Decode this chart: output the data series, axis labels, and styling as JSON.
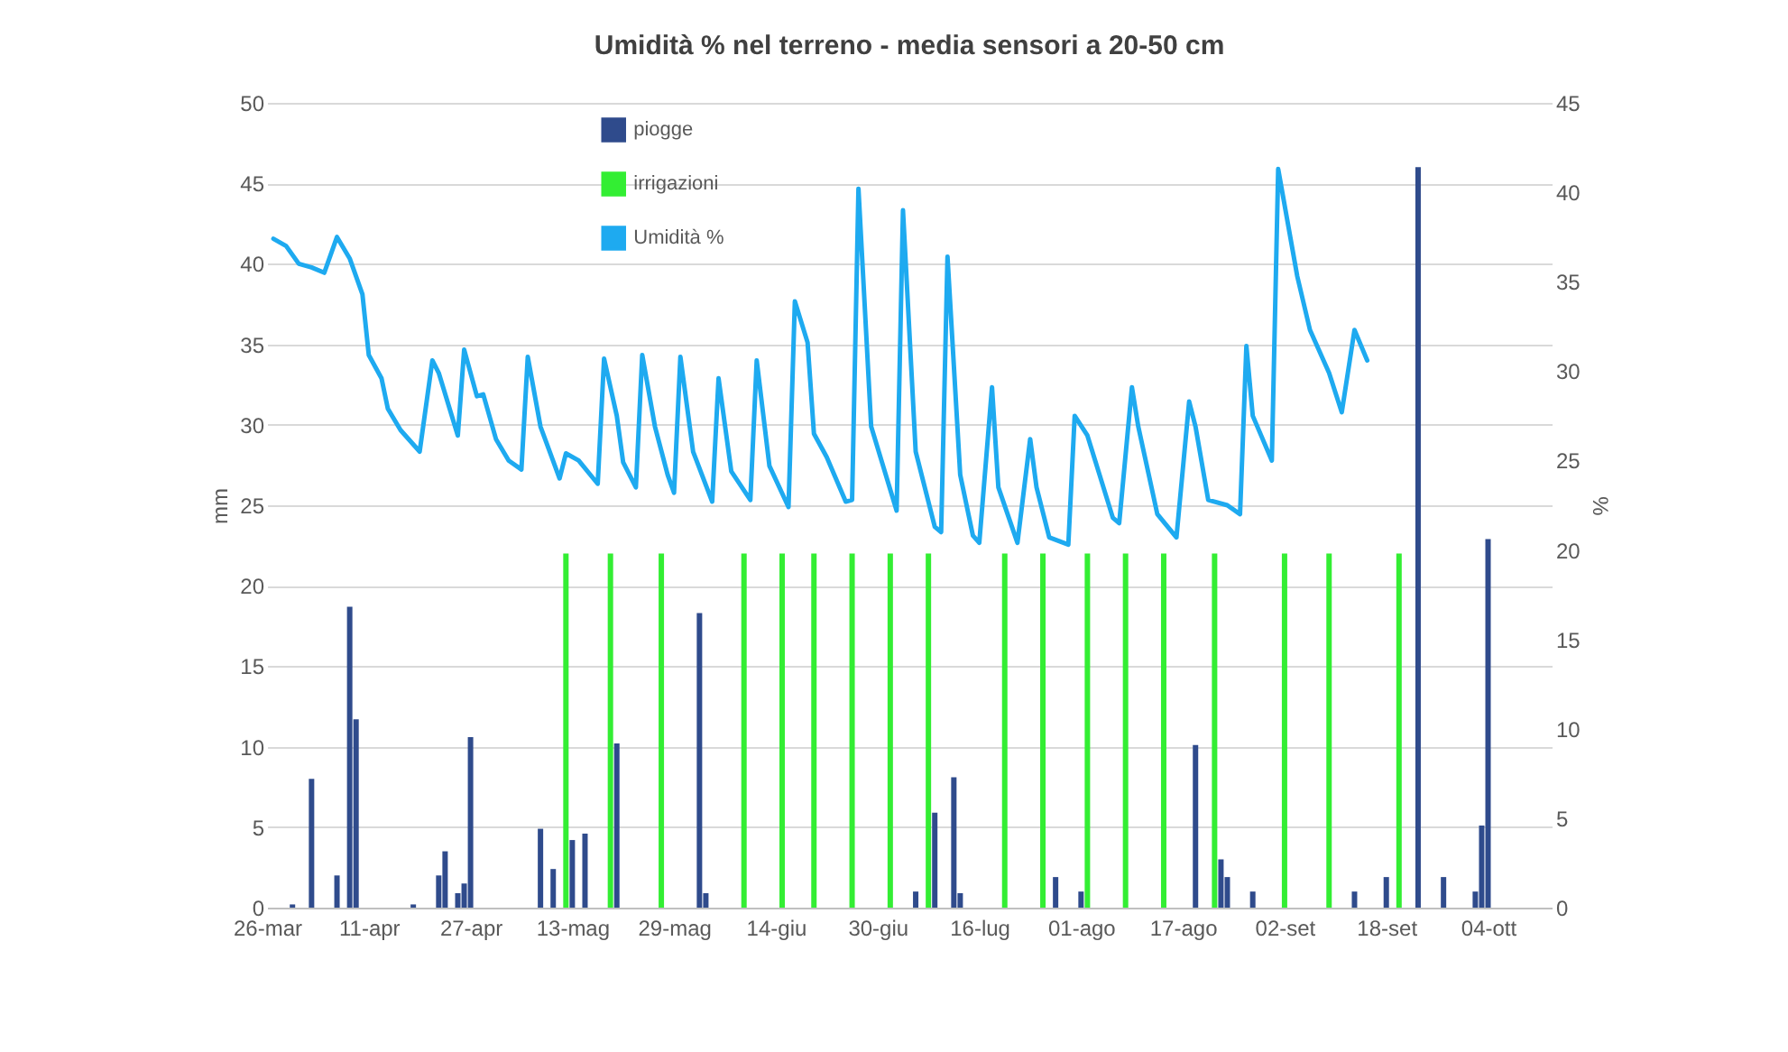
{
  "chart_data": {
    "type": "bar",
    "title": "Umidità % nel terreno - media sensori a 20-50 cm",
    "ylabel": "mm",
    "y2label": "%",
    "xlim": [
      "--03-26",
      "--10-14"
    ],
    "xticks": [
      {
        "value": "--03-26",
        "label": "26-mar"
      },
      {
        "value": "--04-11",
        "label": "11-apr"
      },
      {
        "value": "--04-27",
        "label": "27-apr"
      },
      {
        "value": "--05-13",
        "label": "13-mag"
      },
      {
        "value": "--05-29",
        "label": "29-mag"
      },
      {
        "value": "--06-14",
        "label": "14-giu"
      },
      {
        "value": "--06-30",
        "label": "30-giu"
      },
      {
        "value": "--07-16",
        "label": "16-lug"
      },
      {
        "value": "--08-01",
        "label": "01-ago"
      },
      {
        "value": "--08-17",
        "label": "17-ago"
      },
      {
        "value": "--09-02",
        "label": "02-set"
      },
      {
        "value": "--09-18",
        "label": "18-set"
      },
      {
        "value": "--10-04",
        "label": "04-ott"
      }
    ],
    "ylim": [
      0,
      50
    ],
    "yticks": [
      0,
      5,
      10,
      15,
      20,
      25,
      30,
      35,
      40,
      45,
      50
    ],
    "y2lim": [
      0,
      45
    ],
    "y2ticks": [
      0,
      5,
      10,
      15,
      20,
      25,
      30,
      35,
      40,
      45
    ],
    "grid": "y",
    "legend": "top left",
    "series": [
      {
        "name": "piogge",
        "color": "#2f4b8c",
        "x": [
          "--03-30",
          "--04-02",
          "--04-06",
          "--04-08",
          "--04-09",
          "--04-18",
          "--04-22",
          "--04-23",
          "--04-25",
          "--04-26",
          "--04-27",
          "--05-08",
          "--05-10",
          "--05-13",
          "--05-15",
          "--05-20",
          "--06-02",
          "--06-03",
          "--07-06",
          "--07-09",
          "--07-12",
          "--07-13",
          "--07-28",
          "--08-01",
          "--08-19",
          "--08-23",
          "--08-24",
          "--08-28",
          "--09-13",
          "--09-18",
          "--09-23",
          "--09-27",
          "--10-02",
          "--10-03",
          "--10-04"
        ],
        "values": [
          0.2,
          8.0,
          2.0,
          18.7,
          11.7,
          0.2,
          2.0,
          3.5,
          0.9,
          1.5,
          10.6,
          4.9,
          2.4,
          4.2,
          4.6,
          10.2,
          18.3,
          0.9,
          1.0,
          5.9,
          8.1,
          0.9,
          1.9,
          1.0,
          10.1,
          3.0,
          1.9,
          1.0,
          1.0,
          1.9,
          46.0,
          1.9,
          1.0,
          5.1,
          22.9
        ]
      },
      {
        "name": "irrigazioni",
        "color": "#33ee33",
        "x": [
          "--05-12",
          "--05-19",
          "--05-27",
          "--06-09",
          "--06-15",
          "--06-20",
          "--06-26",
          "--07-02",
          "--07-08",
          "--07-20",
          "--07-26",
          "--08-02",
          "--08-08",
          "--08-14",
          "--08-22",
          "--09-02",
          "--09-09",
          "--09-20"
        ],
        "values": [
          22,
          22,
          22,
          22,
          22,
          22,
          22,
          22,
          22,
          22,
          22,
          22,
          22,
          22,
          22,
          22,
          22,
          22
        ]
      },
      {
        "name": "Umidità %",
        "type": "line",
        "axis": "y2",
        "color": "#1eaaf0",
        "x": [
          "--03-27",
          "--03-29",
          "--03-31",
          "--04-02",
          "--04-04",
          "--04-06",
          "--04-08",
          "--04-10",
          "--04-11",
          "--04-13",
          "--04-14",
          "--04-16",
          "--04-19",
          "--04-21",
          "--04-22",
          "--04-25",
          "--04-26",
          "--04-28",
          "--04-29",
          "--05-01",
          "--05-03",
          "--05-05",
          "--05-06",
          "--05-08",
          "--05-11",
          "--05-12",
          "--05-14",
          "--05-17",
          "--05-18",
          "--05-20",
          "--05-21",
          "--05-23",
          "--05-24",
          "--05-26",
          "--05-28",
          "--05-29",
          "--05-30",
          "--06-01",
          "--06-04",
          "--06-05",
          "--06-07",
          "--06-10",
          "--06-11",
          "--06-13",
          "--06-16",
          "--06-17",
          "--06-19",
          "--06-20",
          "--06-22",
          "--06-25",
          "--06-26",
          "--06-27",
          "--06-29",
          "--07-03",
          "--07-04",
          "--07-06",
          "--07-09",
          "--07-10",
          "--07-11",
          "--07-13",
          "--07-15",
          "--07-16",
          "--07-18",
          "--07-19",
          "--07-22",
          "--07-24",
          "--07-25",
          "--07-27",
          "--07-30",
          "--07-31",
          "--08-02",
          "--08-06",
          "--08-07",
          "--08-09",
          "--08-10",
          "--08-13",
          "--08-16",
          "--08-18",
          "--08-19",
          "--08-21",
          "--08-24",
          "--08-26",
          "--08-27",
          "--08-28",
          "--08-31",
          "--09-01",
          "--09-04",
          "--09-06",
          "--09-09",
          "--09-11",
          "--09-13",
          "--09-15"
        ],
        "values": [
          37.4,
          37.0,
          36.0,
          35.8,
          35.5,
          37.5,
          36.3,
          34.3,
          30.9,
          29.6,
          27.9,
          26.7,
          25.5,
          30.6,
          29.9,
          26.4,
          31.2,
          28.6,
          28.7,
          26.2,
          25.0,
          24.5,
          30.8,
          26.9,
          24.0,
          25.4,
          25.0,
          23.7,
          30.7,
          27.5,
          24.9,
          23.5,
          30.9,
          26.9,
          24.2,
          23.2,
          30.8,
          25.5,
          22.7,
          29.6,
          24.4,
          22.8,
          30.6,
          24.7,
          22.4,
          33.9,
          31.6,
          26.5,
          25.2,
          22.7,
          22.8,
          40.2,
          26.9,
          22.2,
          39.0,
          25.5,
          21.3,
          21.0,
          36.4,
          24.2,
          20.8,
          20.4,
          29.1,
          23.5,
          20.4,
          26.2,
          23.5,
          20.7,
          20.3,
          27.5,
          26.4,
          21.8,
          21.5,
          29.1,
          26.9,
          22.0,
          20.7,
          28.3,
          26.9,
          22.8,
          22.5,
          22.0,
          31.4,
          27.5,
          25.0,
          41.3,
          35.3,
          32.3,
          29.9,
          27.7,
          32.3,
          30.6
        ]
      }
    ]
  }
}
